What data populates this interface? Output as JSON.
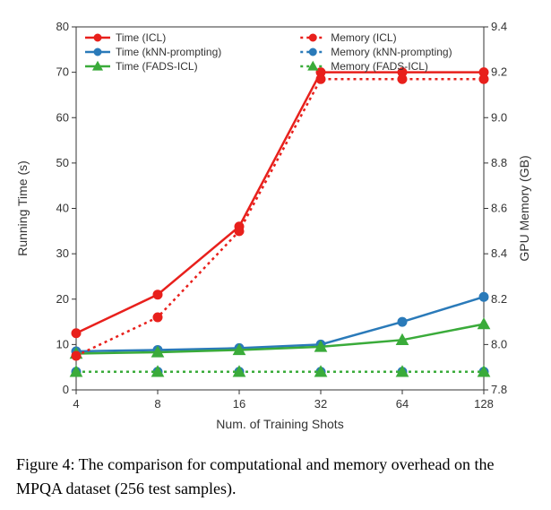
{
  "chart": {
    "type": "line",
    "xlabel": "Num. of Training Shots",
    "y1label": "Running Time (s)",
    "y2label": "GPU Memory (GB)",
    "x_categories": [
      "4",
      "8",
      "16",
      "32",
      "64",
      "128"
    ],
    "y1_ticks": [
      0,
      10,
      20,
      30,
      40,
      50,
      60,
      70,
      80
    ],
    "y2_ticks": [
      7.8,
      8.0,
      8.2,
      8.4,
      8.6,
      8.8,
      9.0,
      9.2,
      9.4
    ],
    "y1_lim": [
      0,
      80
    ],
    "y2_lim": [
      7.8,
      9.4
    ],
    "x_positions": [
      0,
      1,
      2,
      3,
      4,
      5
    ],
    "background_color": "#ffffff",
    "plot_bg": "#ffffff",
    "series": [
      {
        "name": "Time (ICL)",
        "axis": "y1",
        "values": [
          12.5,
          21,
          36,
          70,
          70,
          70
        ],
        "color": "#e8201c",
        "style": "solid",
        "marker": "circle",
        "marker_fill": "#e8201c"
      },
      {
        "name": "Time (kNN-prompting)",
        "axis": "y1",
        "values": [
          8.5,
          8.8,
          9.2,
          10,
          15,
          20.5
        ],
        "color": "#2a7ab9",
        "style": "solid",
        "marker": "circle",
        "marker_fill": "#2a7ab9"
      },
      {
        "name": "Time (FADS-ICL)",
        "axis": "y1",
        "values": [
          8,
          8.3,
          8.8,
          9.5,
          11,
          14.5
        ],
        "color": "#3aab3a",
        "style": "solid",
        "marker": "triangle",
        "marker_fill": "#3aab3a"
      },
      {
        "name": "Memory (ICL)",
        "axis": "y2",
        "values": [
          7.95,
          8.12,
          8.5,
          9.17,
          9.17,
          9.17
        ],
        "color": "#e8201c",
        "style": "dotted",
        "marker": "circle",
        "marker_fill": "#e8201c"
      },
      {
        "name": "Memory (kNN-prompting)",
        "axis": "y2",
        "values": [
          7.88,
          7.88,
          7.88,
          7.88,
          7.88,
          7.88
        ],
        "color": "#2a7ab9",
        "style": "dotted",
        "marker": "circle",
        "marker_fill": "#2a7ab9"
      },
      {
        "name": "Memory (FADS-ICL)",
        "axis": "y2",
        "values": [
          7.88,
          7.88,
          7.88,
          7.88,
          7.88,
          7.88
        ],
        "color": "#3aab3a",
        "style": "dotted",
        "marker": "triangle",
        "marker_fill": "#3aab3a"
      }
    ],
    "label_fontsize": 14,
    "tick_fontsize": 13,
    "legend_fontsize": 12,
    "line_width": 2.5,
    "marker_size": 5
  },
  "caption": "Figure 4: The comparison for computational and memory overhead on the MPQA dataset (256 test samples)."
}
